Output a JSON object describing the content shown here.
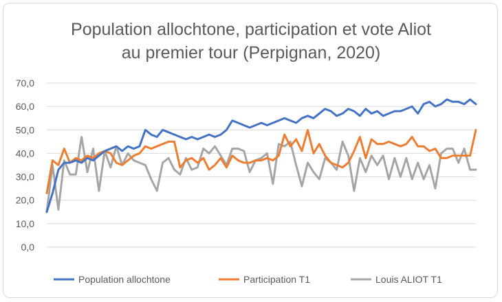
{
  "chart_data": {
    "type": "line",
    "title_line1": "Population allochtone, participation et vote Aliot",
    "title_line2": "au premier tour (Perpignan, 2020)",
    "ylim": [
      0,
      70
    ],
    "yticks": [
      "0,0",
      "10,0",
      "20,0",
      "30,0",
      "40,0",
      "50,0",
      "60,0",
      "70,0"
    ],
    "ytick_values": [
      0,
      10,
      20,
      30,
      40,
      50,
      60,
      70
    ],
    "grid": true,
    "legend_position": "bottom",
    "series": [
      {
        "name": "Population allochtone",
        "color": "#4472c4",
        "values": [
          15,
          23,
          33,
          36,
          36,
          37,
          36,
          38,
          37,
          39,
          41,
          42,
          43,
          41,
          43,
          42,
          43,
          50,
          48,
          47,
          50,
          49,
          48,
          47,
          46,
          47,
          46,
          47,
          48,
          47,
          48,
          50,
          54,
          53,
          52,
          51,
          52,
          53,
          52,
          53,
          54,
          55,
          54,
          53,
          55,
          56,
          55,
          57,
          59,
          58,
          56,
          57,
          59,
          58,
          56,
          59,
          57,
          58,
          56,
          57,
          58,
          58,
          59,
          60,
          57,
          61,
          62,
          60,
          61,
          63,
          62,
          62,
          61,
          63,
          61
        ]
      },
      {
        "name": "Participation T1",
        "color": "#ed7d31",
        "values": [
          23,
          37,
          35,
          42,
          36,
          38,
          37,
          39,
          38,
          40,
          41,
          40,
          36,
          35,
          37,
          39,
          40,
          43,
          42,
          43,
          44,
          45,
          45,
          34,
          37,
          38,
          36,
          38,
          33,
          35,
          38,
          34,
          39,
          37,
          36,
          36,
          37,
          37,
          38,
          37,
          39,
          48,
          43,
          46,
          41,
          50,
          40,
          44,
          39,
          36,
          35,
          34,
          36,
          41,
          47,
          38,
          46,
          44,
          44,
          45,
          44,
          43,
          44,
          47,
          43,
          43,
          41,
          42,
          38,
          38,
          39,
          39,
          39,
          39,
          50
        ]
      },
      {
        "name": "Louis ALIOT T1",
        "color": "#a5a5a5",
        "values": [
          15,
          35,
          16,
          37,
          31,
          31,
          47,
          32,
          42,
          24,
          41,
          34,
          43,
          35,
          40,
          37,
          36,
          35,
          29,
          24,
          36,
          38,
          33,
          31,
          38,
          33,
          34,
          42,
          40,
          43,
          39,
          35,
          42,
          42,
          41,
          32,
          37,
          38,
          40,
          27,
          44,
          43,
          45,
          35,
          26,
          36,
          32,
          29,
          38,
          36,
          33,
          45,
          39,
          24,
          38,
          32,
          39,
          35,
          39,
          29,
          38,
          30,
          38,
          29,
          36,
          29,
          35,
          25,
          40,
          42,
          42,
          36,
          42,
          33,
          33
        ]
      }
    ]
  }
}
